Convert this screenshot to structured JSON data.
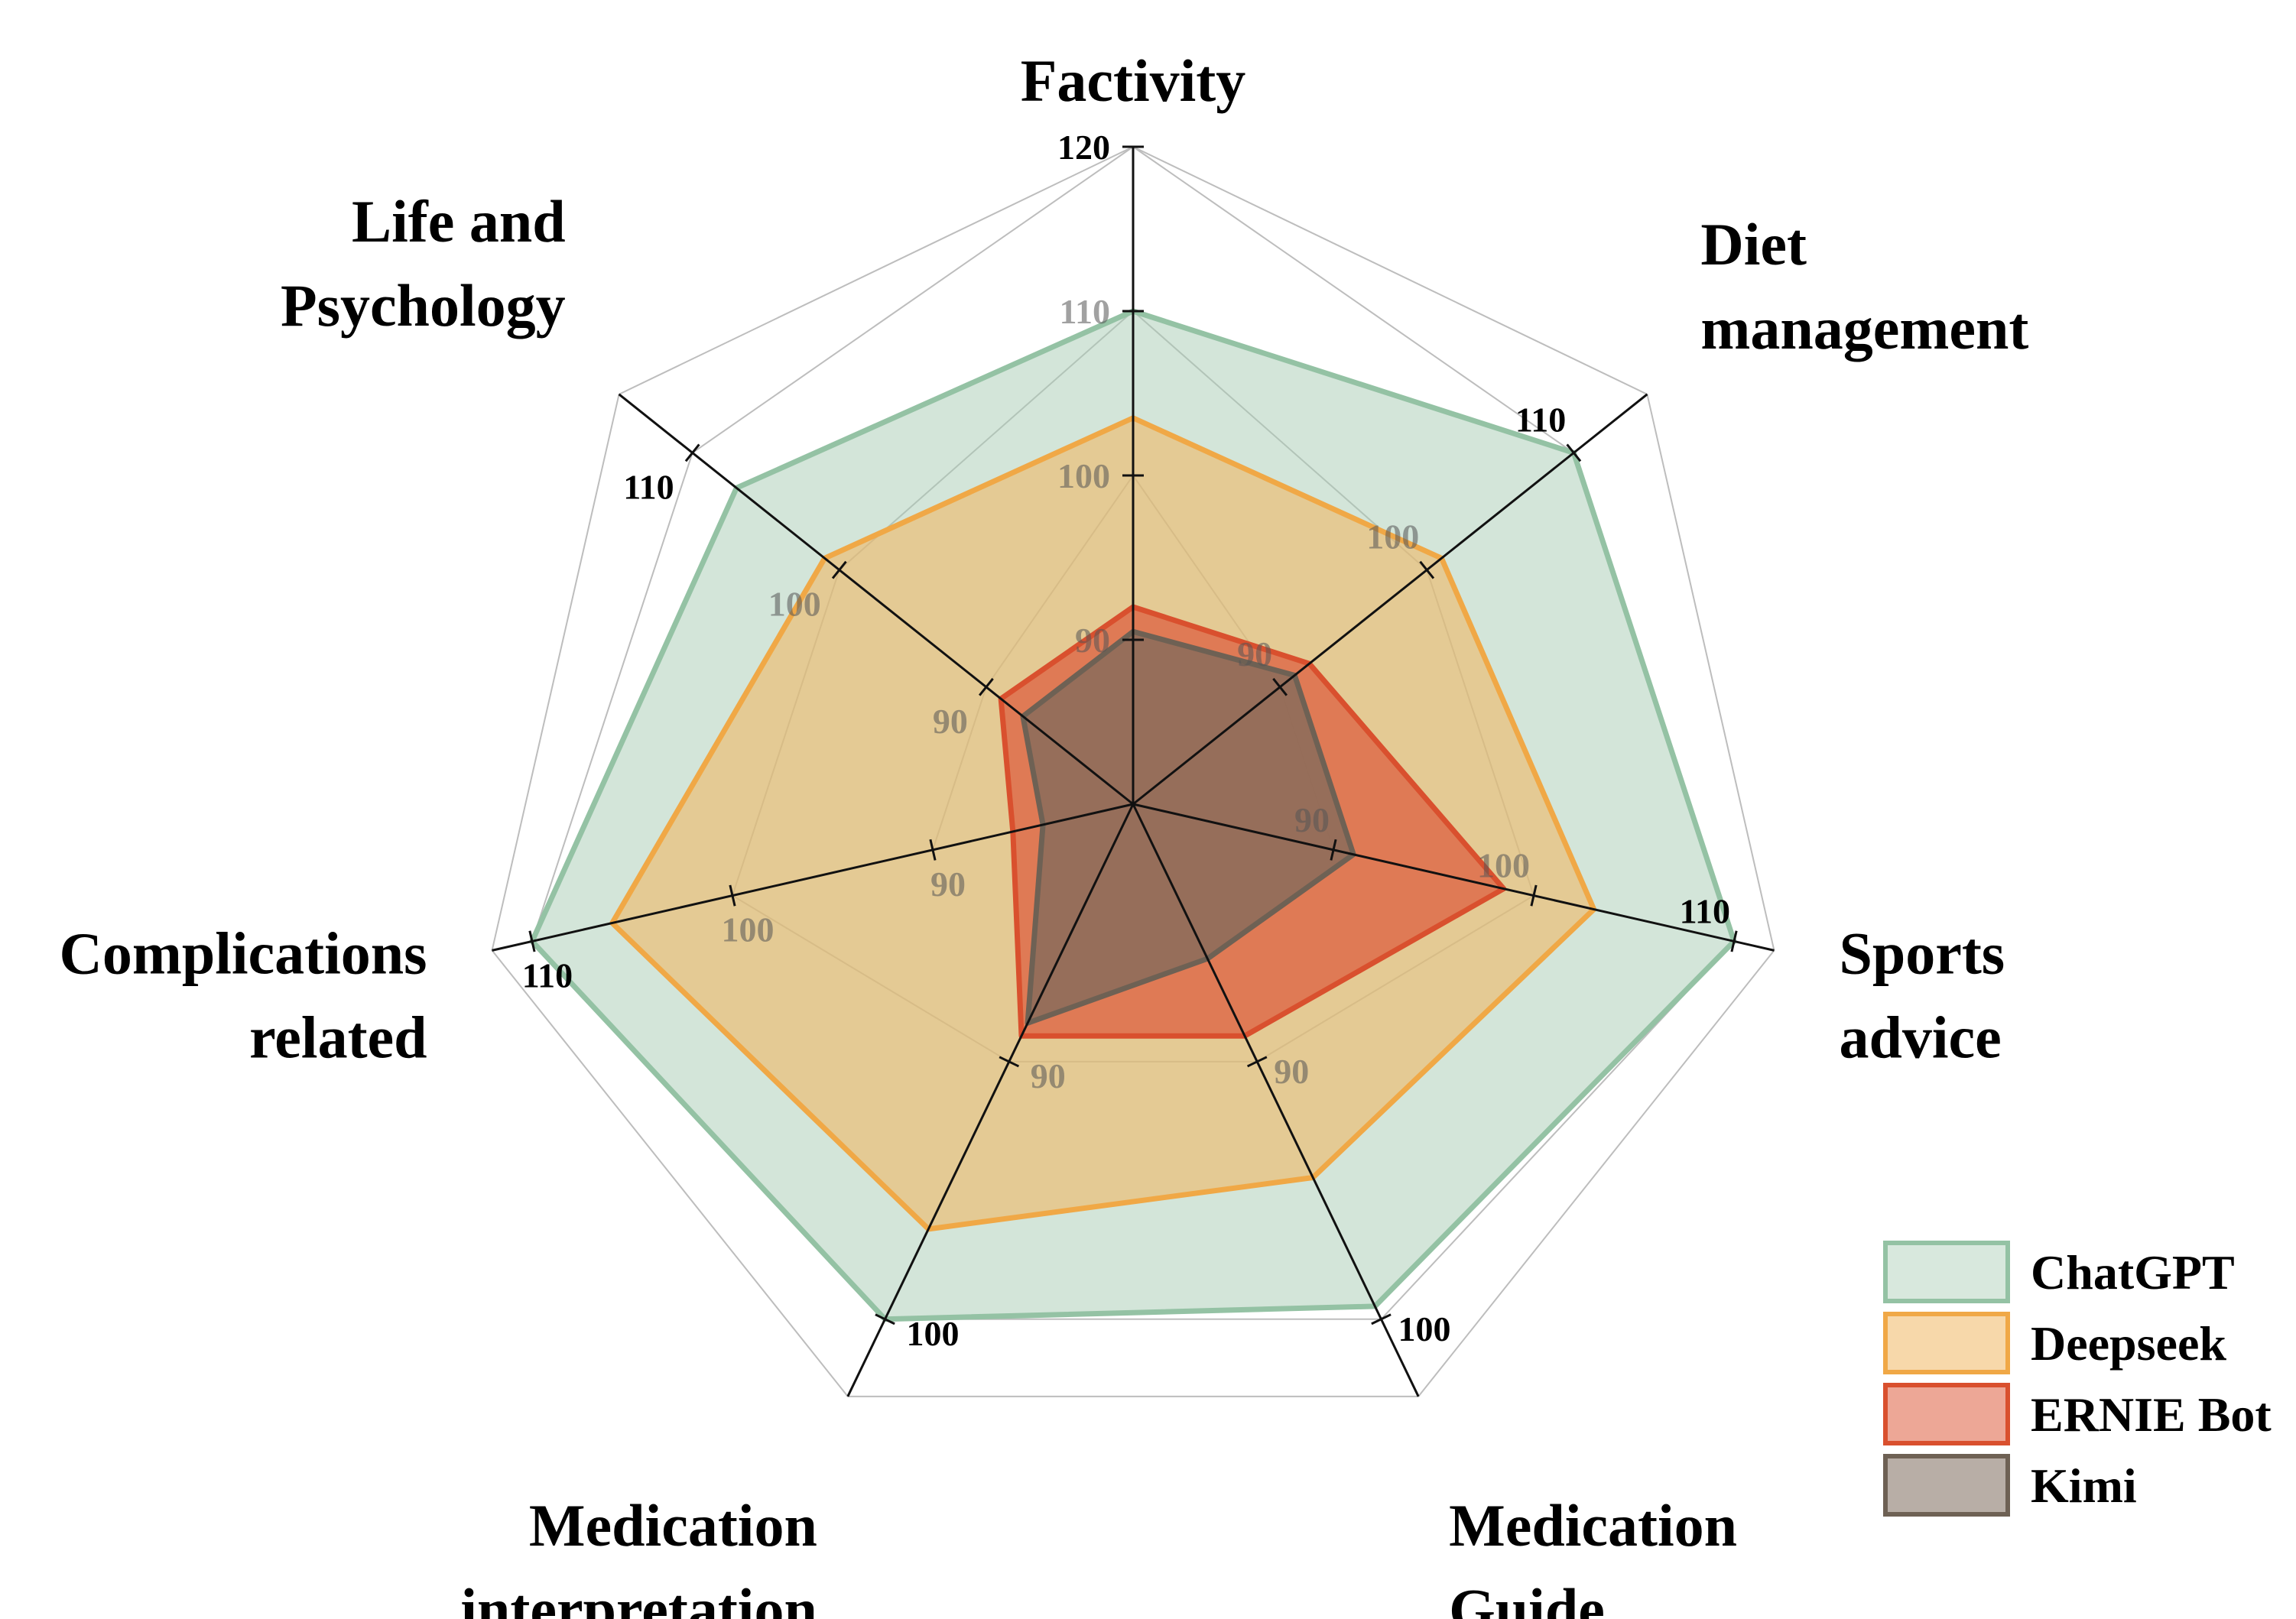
{
  "chart_data": {
    "type": "radar",
    "title": "",
    "axes": [
      {
        "title": [
          "Factivity"
        ],
        "min": 80,
        "max": 120,
        "ticks": [
          90,
          100,
          110,
          120
        ]
      },
      {
        "title": [
          "Diet",
          "management"
        ],
        "min": 80,
        "max": 115,
        "ticks": [
          90,
          100,
          110
        ]
      },
      {
        "title": [
          "Sports",
          "advice"
        ],
        "min": 80,
        "max": 112,
        "ticks": [
          90,
          100,
          110
        ]
      },
      {
        "title": [
          "Medication",
          "Guide"
        ],
        "min": 80,
        "max": 103,
        "ticks": [
          90,
          100
        ]
      },
      {
        "title": [
          "Medication",
          "interpretation"
        ],
        "min": 80,
        "max": 103,
        "ticks": [
          90,
          100
        ]
      },
      {
        "title": [
          "Complications",
          "related"
        ],
        "min": 80,
        "max": 112,
        "ticks": [
          90,
          100,
          110
        ]
      },
      {
        "title": [
          "Life and",
          "Psychology"
        ],
        "min": 80,
        "max": 115,
        "ticks": [
          90,
          100,
          110
        ]
      }
    ],
    "series": [
      {
        "name": "ChatGPT",
        "values": [
          110,
          110,
          110,
          99.5,
          100,
          110,
          107
        ],
        "fill": "#a8cbb3",
        "stroke": "#94c2a4"
      },
      {
        "name": "Deepseek",
        "values": [
          103.5,
          101,
          103,
          94.5,
          96.5,
          106,
          101
        ],
        "fill": "#f0b865",
        "stroke": "#f0a846"
      },
      {
        "name": "ERNIE Bot",
        "values": [
          92,
          92,
          98.5,
          89,
          89,
          86,
          89
        ],
        "fill": "#de5f40",
        "stroke": "#d9502e"
      },
      {
        "name": "Kimi",
        "values": [
          90.5,
          91,
          91,
          86,
          88.5,
          84.5,
          87.5
        ],
        "fill": "#7d6b5c",
        "stroke": "#6e6154"
      }
    ],
    "legend_position": "bottom-right"
  }
}
